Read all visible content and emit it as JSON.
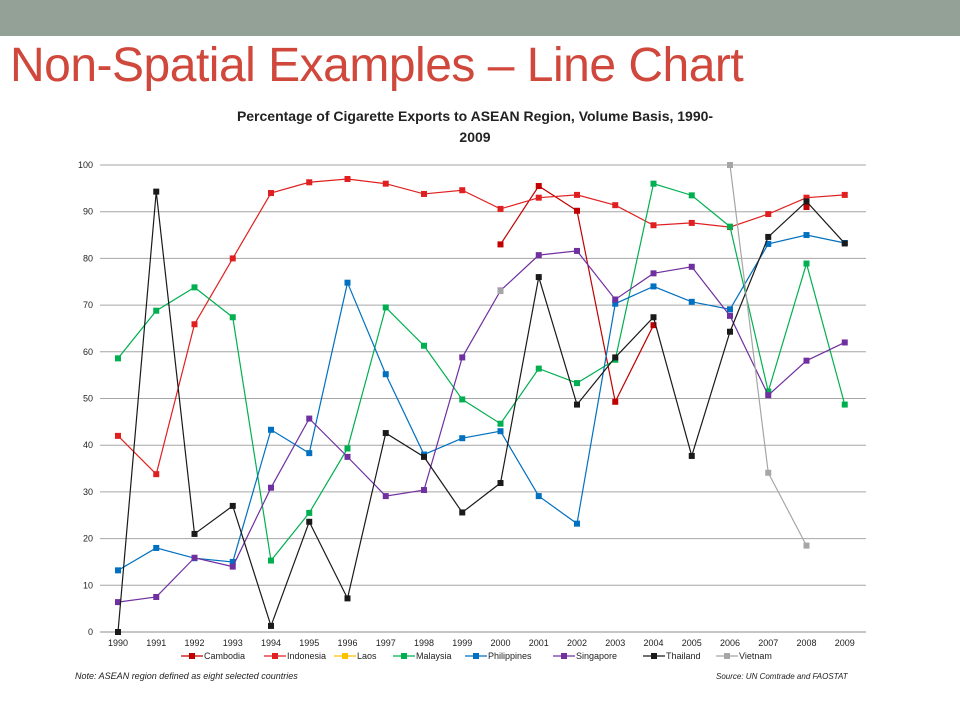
{
  "slide": {
    "title": "Non-Spatial Examples – Line Chart",
    "note": "Note: ASEAN region defined as eight selected countries",
    "source": "Source: UN Comtrade and FAOSTAT",
    "topbar_color": "#94a197",
    "title_color": "#d0473b"
  },
  "chart_data": {
    "type": "line",
    "title": "Percentage of Cigarette Exports to ASEAN Region, Volume Basis, 1990-2009",
    "title_lines": [
      "Percentage of Cigarette Exports to ASEAN Region, Volume Basis, 1990-",
      "2009"
    ],
    "xlabel": "",
    "ylabel": "",
    "ylim": [
      0,
      100
    ],
    "yticks": [
      0,
      10,
      20,
      30,
      40,
      50,
      60,
      70,
      80,
      90,
      100
    ],
    "grid": true,
    "legend_position": "bottom",
    "x": [
      "1990",
      "1991",
      "1992",
      "1993",
      "1994",
      "1995",
      "1996",
      "1997",
      "1998",
      "1999",
      "2000",
      "2001",
      "2002",
      "2003",
      "2004",
      "2005",
      "2006",
      "2007",
      "2008",
      "2009"
    ],
    "series": [
      {
        "name": "Cambodia",
        "color": "#c00000",
        "values": [
          null,
          null,
          null,
          null,
          null,
          null,
          null,
          null,
          null,
          null,
          83,
          95.5,
          90.2,
          49.3,
          65.7,
          null,
          null,
          null,
          91,
          null
        ]
      },
      {
        "name": "Indonesia",
        "color": "#e02020",
        "values": [
          42,
          33.8,
          65.9,
          80,
          94,
          96.3,
          97,
          96,
          93.8,
          94.6,
          90.6,
          93,
          93.6,
          91.4,
          87.1,
          87.6,
          86.7,
          89.5,
          93,
          93.6
        ]
      },
      {
        "name": "Laos",
        "color": "#ffc000",
        "values": [
          null,
          null,
          null,
          null,
          null,
          null,
          null,
          null,
          null,
          null,
          null,
          null,
          null,
          null,
          null,
          null,
          null,
          null,
          null,
          null
        ]
      },
      {
        "name": "Malaysia",
        "color": "#00b050",
        "values": [
          58.6,
          68.8,
          73.8,
          67.4,
          15.3,
          25.5,
          39.3,
          69.5,
          61.3,
          49.8,
          44.6,
          56.4,
          53.3,
          58.3,
          96,
          93.5,
          86.8,
          51.5,
          78.9,
          48.7
        ]
      },
      {
        "name": "Philippines",
        "color": "#0070c0",
        "values": [
          13.2,
          18,
          15.8,
          15,
          43.3,
          38.3,
          74.8,
          55.2,
          38,
          41.5,
          43,
          29.1,
          23.2,
          70.3,
          74,
          70.7,
          69.1,
          83.1,
          85,
          83.3
        ]
      },
      {
        "name": "Singapore",
        "color": "#7030a0",
        "values": [
          6.4,
          7.5,
          15.9,
          14,
          30.9,
          45.7,
          37.5,
          29.1,
          30.4,
          58.8,
          73.1,
          80.7,
          81.6,
          71.2,
          76.8,
          78.2,
          67.7,
          50.7,
          58.1,
          62
        ]
      },
      {
        "name": "Thailand",
        "color": "#1a1a1a",
        "values": [
          0,
          94.3,
          21,
          27,
          1.3,
          23.6,
          7.2,
          42.6,
          37.5,
          25.6,
          31.9,
          76,
          48.7,
          58.8,
          67.4,
          37.7,
          64.3,
          84.6,
          92.2,
          83.2
        ]
      },
      {
        "name": "Vietnam",
        "color": "#a6a6a6",
        "values": [
          null,
          null,
          null,
          null,
          null,
          null,
          null,
          null,
          null,
          null,
          73,
          null,
          null,
          null,
          null,
          null,
          100,
          34.1,
          18.5,
          null
        ]
      }
    ]
  }
}
